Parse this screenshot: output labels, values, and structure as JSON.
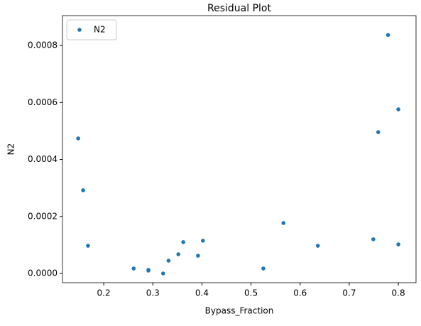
{
  "chart_data": {
    "type": "scatter",
    "title": "Residual Plot",
    "x_label": "Bypass_Fraction",
    "y_label": "N2",
    "series": [
      {
        "name": "N2",
        "color": "#1f77b4",
        "x": [
          0.148,
          0.158,
          0.168,
          0.261,
          0.291,
          0.291,
          0.321,
          0.332,
          0.352,
          0.362,
          0.392,
          0.402,
          0.525,
          0.566,
          0.636,
          0.749,
          0.759,
          0.779,
          0.8,
          0.8
        ],
        "values": [
          0.000474,
          0.000292,
          9.72e-05,
          1.74e-05,
          1.25e-05,
          1e-05,
          0,
          4.49e-05,
          6.73e-05,
          0.00011,
          6.23e-05,
          0.000115,
          1.74e-05,
          0.000177,
          9.72e-05,
          0.00012,
          0.000496,
          0.000837,
          0.000576,
          0.000102
        ]
      }
    ],
    "xlim": [
      0.116,
      0.836
    ],
    "xticks": [
      0.2,
      0.3,
      0.4,
      0.5,
      0.6,
      0.7,
      0.8
    ],
    "ylim": [
      -3.24e-05,
      0.000905
    ],
    "yticks": [
      {
        "value": 0,
        "label": "0.0000"
      },
      {
        "value": 0.0002,
        "label": "0.0002"
      },
      {
        "value": 0.0004,
        "label": "0.0004"
      },
      {
        "value": 0.0006,
        "label": "0.0006"
      },
      {
        "value": 0.0008,
        "label": "0.0008"
      }
    ],
    "legend": "upper left"
  }
}
